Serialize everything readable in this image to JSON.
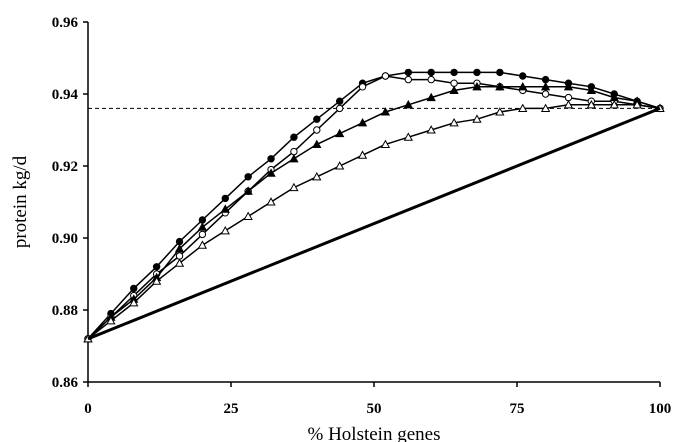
{
  "chart_data": {
    "type": "line",
    "title": "",
    "xlabel": "% Holstein genes",
    "ylabel": "protein kg/d",
    "xlim": [
      0,
      100
    ],
    "ylim": [
      0.86,
      0.96
    ],
    "xticks": [
      0,
      25,
      50,
      75,
      100
    ],
    "xtick_labels": [
      "0",
      "25",
      "50",
      "75",
      "100"
    ],
    "yticks": [
      0.86,
      0.88,
      0.9,
      0.92,
      0.94,
      0.96
    ],
    "ytick_labels": [
      "0.86",
      "0.88",
      "0.90",
      "0.92",
      "0.94",
      "0.96"
    ],
    "grid": false,
    "reference_line": {
      "y": 0.936,
      "style": "dashed"
    },
    "series": [
      {
        "marker": "filled-circle",
        "x": [
          0,
          4,
          8,
          12,
          16,
          20,
          24,
          28,
          32,
          36,
          40,
          44,
          48,
          52,
          56,
          60,
          64,
          68,
          72,
          76,
          80,
          84,
          88,
          92,
          96,
          100
        ],
        "values": [
          0.872,
          0.879,
          0.886,
          0.892,
          0.899,
          0.905,
          0.911,
          0.917,
          0.922,
          0.928,
          0.933,
          0.938,
          0.943,
          0.945,
          0.946,
          0.946,
          0.946,
          0.946,
          0.946,
          0.945,
          0.944,
          0.943,
          0.942,
          0.94,
          0.938,
          0.936
        ]
      },
      {
        "marker": "open-circle",
        "x": [
          0,
          4,
          8,
          12,
          16,
          20,
          24,
          28,
          32,
          36,
          40,
          44,
          48,
          52,
          56,
          60,
          64,
          68,
          72,
          76,
          80,
          84,
          88,
          92,
          96,
          100
        ],
        "values": [
          0.872,
          0.878,
          0.884,
          0.89,
          0.895,
          0.901,
          0.907,
          0.913,
          0.919,
          0.924,
          0.93,
          0.936,
          0.942,
          0.945,
          0.944,
          0.944,
          0.943,
          0.943,
          0.942,
          0.941,
          0.94,
          0.939,
          0.938,
          0.938,
          0.937,
          0.936
        ]
      },
      {
        "marker": "filled-triangle",
        "x": [
          0,
          4,
          8,
          12,
          16,
          20,
          24,
          28,
          32,
          36,
          40,
          44,
          48,
          52,
          56,
          60,
          64,
          68,
          72,
          76,
          80,
          84,
          88,
          92,
          96,
          100
        ],
        "values": [
          0.872,
          0.878,
          0.883,
          0.889,
          0.897,
          0.903,
          0.908,
          0.913,
          0.918,
          0.922,
          0.926,
          0.929,
          0.932,
          0.935,
          0.937,
          0.939,
          0.941,
          0.942,
          0.942,
          0.942,
          0.942,
          0.942,
          0.941,
          0.939,
          0.938,
          0.936
        ]
      },
      {
        "marker": "open-triangle",
        "x": [
          0,
          4,
          8,
          12,
          16,
          20,
          24,
          28,
          32,
          36,
          40,
          44,
          48,
          52,
          56,
          60,
          64,
          68,
          72,
          76,
          80,
          84,
          88,
          92,
          96,
          100
        ],
        "values": [
          0.872,
          0.877,
          0.882,
          0.888,
          0.893,
          0.898,
          0.902,
          0.906,
          0.91,
          0.914,
          0.917,
          0.92,
          0.923,
          0.926,
          0.928,
          0.93,
          0.932,
          0.933,
          0.935,
          0.936,
          0.936,
          0.937,
          0.937,
          0.937,
          0.937,
          0.936
        ]
      },
      {
        "marker": "none",
        "style": "bold",
        "x": [
          0,
          100
        ],
        "values": [
          0.872,
          0.936
        ]
      }
    ]
  }
}
